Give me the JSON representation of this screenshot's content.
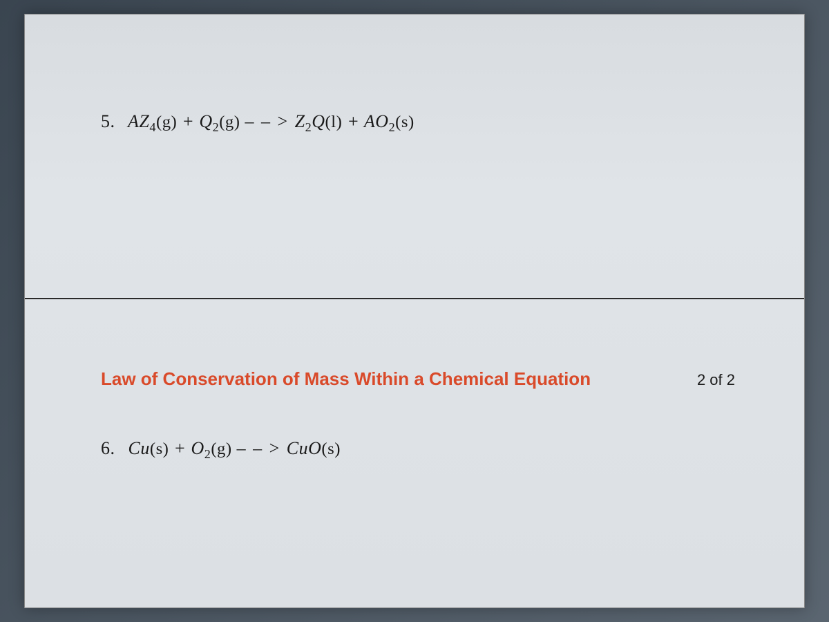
{
  "colors": {
    "page_bg_top": "#d8dce0",
    "page_bg_bottom": "#dce0e4",
    "screen_bg": "#4a5560",
    "text": "#1a1a1a",
    "title": "#d94a2a",
    "divider": "#2a2a2a"
  },
  "typography": {
    "equation_fontsize": 26,
    "title_fontsize": 26,
    "pager_fontsize": 22,
    "equation_font": "Times New Roman",
    "title_font": "Arial"
  },
  "question5": {
    "number": "5.",
    "reactant1_base": "AZ",
    "reactant1_sub": "4",
    "reactant1_state": "(g)",
    "plus1": " + ",
    "reactant2_base": "Q",
    "reactant2_sub": "2",
    "reactant2_state": "(g)",
    "arrow": " – – > ",
    "product1_base": "Z",
    "product1_sub": "2",
    "product1_base2": "Q",
    "product1_state": "(l)",
    "plus2": " + ",
    "product2_base": "AO",
    "product2_sub": "2",
    "product2_state": "(s)"
  },
  "section_header": {
    "title": "Law of Conservation of Mass Within a Chemical Equation",
    "pager": "2 of 2"
  },
  "question6": {
    "number": "6.",
    "reactant1_base": "Cu",
    "reactant1_state": "(s)",
    "plus1": " + ",
    "reactant2_base": "O",
    "reactant2_sub": "2",
    "reactant2_state": "(g)",
    "arrow": " – – > ",
    "product1_base": "CuO",
    "product1_state": "(s)"
  }
}
